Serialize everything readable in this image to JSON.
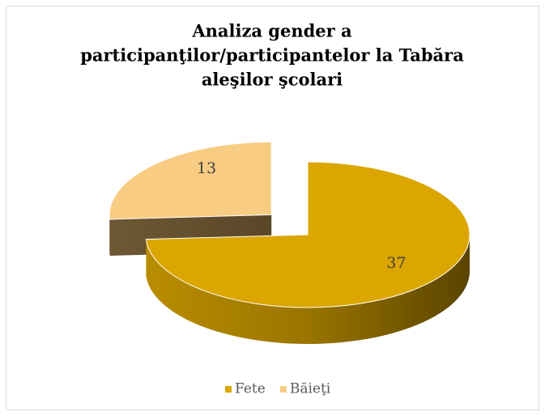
{
  "chart_data": {
    "type": "pie",
    "title": [
      "Analiza gender a",
      "participanţilor/participantelor la Tabăra",
      "aleşilor şcolari"
    ],
    "categories": [
      "Fete",
      "Băieţi"
    ],
    "values": [
      37,
      13
    ],
    "colors": [
      "#dba600",
      "#f8cc82"
    ],
    "legend": "bottom"
  }
}
